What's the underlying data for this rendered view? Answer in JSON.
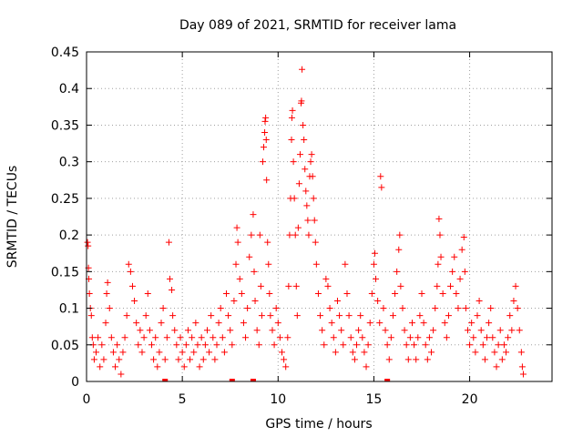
{
  "chart_data": {
    "type": "scatter",
    "title": "Day 089 of 2021, SRMTID for receiver lama",
    "xlabel": "GPS time / hours",
    "ylabel": "SRMTID / TECUs",
    "xlim": [
      0,
      24.3
    ],
    "ylim": [
      0,
      0.45
    ],
    "x_ticks": [
      0,
      5,
      10,
      15,
      20
    ],
    "x_tick_labels": [
      "0",
      "5",
      "10",
      "15",
      "20"
    ],
    "y_ticks": [
      0,
      0.05,
      0.1,
      0.15,
      0.2,
      0.25,
      0.3,
      0.35,
      0.4,
      0.45
    ],
    "y_tick_labels": [
      "0",
      "0.05",
      "0.1",
      "0.15",
      "0.2",
      "0.25",
      "0.3",
      "0.35",
      "0.4",
      "0.45"
    ],
    "grid": true,
    "marker": "plus",
    "color": "#ff0000",
    "series": [
      {
        "name": "SRMTID",
        "points": [
          [
            0.05,
            0.19
          ],
          [
            0.08,
            0.185
          ],
          [
            0.1,
            0.155
          ],
          [
            0.12,
            0.14
          ],
          [
            0.15,
            0.12
          ],
          [
            0.2,
            0.1
          ],
          [
            0.25,
            0.09
          ],
          [
            0.3,
            0.06
          ],
          [
            0.35,
            0.05
          ],
          [
            0.4,
            0.03
          ],
          [
            0.5,
            0.04
          ],
          [
            0.6,
            0.06
          ],
          [
            0.7,
            0.02
          ],
          [
            0.8,
            0.05
          ],
          [
            0.9,
            0.03
          ],
          [
            1.0,
            0.08
          ],
          [
            1.05,
            0.12
          ],
          [
            1.1,
            0.135
          ],
          [
            1.2,
            0.1
          ],
          [
            1.3,
            0.06
          ],
          [
            1.4,
            0.04
          ],
          [
            1.5,
            0.02
          ],
          [
            1.6,
            0.05
          ],
          [
            1.7,
            0.03
          ],
          [
            1.8,
            0.01
          ],
          [
            1.9,
            0.04
          ],
          [
            2.0,
            0.06
          ],
          [
            2.1,
            0.09
          ],
          [
            2.2,
            0.16
          ],
          [
            2.3,
            0.15
          ],
          [
            2.4,
            0.13
          ],
          [
            2.5,
            0.11
          ],
          [
            2.6,
            0.08
          ],
          [
            2.7,
            0.05
          ],
          [
            2.8,
            0.07
          ],
          [
            2.9,
            0.04
          ],
          [
            3.0,
            0.06
          ],
          [
            3.1,
            0.09
          ],
          [
            3.2,
            0.12
          ],
          [
            3.3,
            0.07
          ],
          [
            3.4,
            0.05
          ],
          [
            3.5,
            0.03
          ],
          [
            3.6,
            0.06
          ],
          [
            3.7,
            0.02
          ],
          [
            3.8,
            0.04
          ],
          [
            3.9,
            0.08
          ],
          [
            4.0,
            0.1
          ],
          [
            4.1,
            0.03
          ],
          [
            4.2,
            0.06
          ],
          [
            4.3,
            0.19
          ],
          [
            4.35,
            0.14
          ],
          [
            4.45,
            0.125
          ],
          [
            4.5,
            0.09
          ],
          [
            4.6,
            0.07
          ],
          [
            4.7,
            0.05
          ],
          [
            4.8,
            0.03
          ],
          [
            4.9,
            0.06
          ],
          [
            5.0,
            0.04
          ],
          [
            5.1,
            0.02
          ],
          [
            5.2,
            0.05
          ],
          [
            5.3,
            0.07
          ],
          [
            5.4,
            0.03
          ],
          [
            5.5,
            0.06
          ],
          [
            5.6,
            0.04
          ],
          [
            5.7,
            0.08
          ],
          [
            5.8,
            0.05
          ],
          [
            5.9,
            0.02
          ],
          [
            6.0,
            0.06
          ],
          [
            6.1,
            0.03
          ],
          [
            6.2,
            0.05
          ],
          [
            6.3,
            0.07
          ],
          [
            6.4,
            0.04
          ],
          [
            6.5,
            0.09
          ],
          [
            6.6,
            0.06
          ],
          [
            6.7,
            0.03
          ],
          [
            6.8,
            0.05
          ],
          [
            6.9,
            0.08
          ],
          [
            7.0,
            0.1
          ],
          [
            7.1,
            0.06
          ],
          [
            7.2,
            0.04
          ],
          [
            7.3,
            0.12
          ],
          [
            7.4,
            0.09
          ],
          [
            7.5,
            0.07
          ],
          [
            7.6,
            0.05
          ],
          [
            7.7,
            0.11
          ],
          [
            7.8,
            0.16
          ],
          [
            7.85,
            0.21
          ],
          [
            7.9,
            0.19
          ],
          [
            8.0,
            0.14
          ],
          [
            8.1,
            0.12
          ],
          [
            8.2,
            0.08
          ],
          [
            8.3,
            0.06
          ],
          [
            8.4,
            0.1
          ],
          [
            8.5,
            0.17
          ],
          [
            8.6,
            0.2
          ],
          [
            8.7,
            0.228
          ],
          [
            8.75,
            0.15
          ],
          [
            8.8,
            0.11
          ],
          [
            8.9,
            0.07
          ],
          [
            9.0,
            0.05
          ],
          [
            9.05,
            0.2
          ],
          [
            9.1,
            0.13
          ],
          [
            9.15,
            0.09
          ],
          [
            9.2,
            0.3
          ],
          [
            9.25,
            0.32
          ],
          [
            9.3,
            0.34
          ],
          [
            9.32,
            0.355
          ],
          [
            9.35,
            0.36
          ],
          [
            9.38,
            0.33
          ],
          [
            9.4,
            0.275
          ],
          [
            9.45,
            0.19
          ],
          [
            9.5,
            0.16
          ],
          [
            9.55,
            0.12
          ],
          [
            9.6,
            0.09
          ],
          [
            9.7,
            0.07
          ],
          [
            9.8,
            0.05
          ],
          [
            9.9,
            0.1
          ],
          [
            10.0,
            0.08
          ],
          [
            10.1,
            0.06
          ],
          [
            10.2,
            0.04
          ],
          [
            10.3,
            0.03
          ],
          [
            10.4,
            0.02
          ],
          [
            10.5,
            0.06
          ],
          [
            10.55,
            0.13
          ],
          [
            10.6,
            0.2
          ],
          [
            10.65,
            0.25
          ],
          [
            10.7,
            0.33
          ],
          [
            10.72,
            0.36
          ],
          [
            10.75,
            0.37
          ],
          [
            10.8,
            0.3
          ],
          [
            10.85,
            0.25
          ],
          [
            10.9,
            0.2
          ],
          [
            10.95,
            0.13
          ],
          [
            11.0,
            0.09
          ],
          [
            11.05,
            0.21
          ],
          [
            11.1,
            0.27
          ],
          [
            11.15,
            0.31
          ],
          [
            11.2,
            0.38
          ],
          [
            11.22,
            0.383
          ],
          [
            11.25,
            0.426
          ],
          [
            11.3,
            0.35
          ],
          [
            11.35,
            0.33
          ],
          [
            11.4,
            0.29
          ],
          [
            11.45,
            0.26
          ],
          [
            11.5,
            0.24
          ],
          [
            11.55,
            0.22
          ],
          [
            11.6,
            0.2
          ],
          [
            11.65,
            0.28
          ],
          [
            11.7,
            0.3
          ],
          [
            11.75,
            0.31
          ],
          [
            11.8,
            0.28
          ],
          [
            11.85,
            0.25
          ],
          [
            11.9,
            0.22
          ],
          [
            11.95,
            0.19
          ],
          [
            12.0,
            0.16
          ],
          [
            12.1,
            0.12
          ],
          [
            12.2,
            0.09
          ],
          [
            12.3,
            0.07
          ],
          [
            12.4,
            0.05
          ],
          [
            12.5,
            0.14
          ],
          [
            12.6,
            0.13
          ],
          [
            12.7,
            0.1
          ],
          [
            12.8,
            0.08
          ],
          [
            12.9,
            0.06
          ],
          [
            13.0,
            0.04
          ],
          [
            13.1,
            0.11
          ],
          [
            13.2,
            0.09
          ],
          [
            13.3,
            0.07
          ],
          [
            13.4,
            0.05
          ],
          [
            13.5,
            0.16
          ],
          [
            13.6,
            0.12
          ],
          [
            13.7,
            0.09
          ],
          [
            13.8,
            0.06
          ],
          [
            13.9,
            0.04
          ],
          [
            14.0,
            0.03
          ],
          [
            14.1,
            0.05
          ],
          [
            14.2,
            0.07
          ],
          [
            14.3,
            0.09
          ],
          [
            14.4,
            0.06
          ],
          [
            14.5,
            0.04
          ],
          [
            14.6,
            0.02
          ],
          [
            14.7,
            0.05
          ],
          [
            14.8,
            0.08
          ],
          [
            14.9,
            0.12
          ],
          [
            15.0,
            0.16
          ],
          [
            15.05,
            0.175
          ],
          [
            15.1,
            0.14
          ],
          [
            15.2,
            0.11
          ],
          [
            15.3,
            0.08
          ],
          [
            15.35,
            0.28
          ],
          [
            15.4,
            0.265
          ],
          [
            15.5,
            0.1
          ],
          [
            15.6,
            0.07
          ],
          [
            15.7,
            0.05
          ],
          [
            15.8,
            0.03
          ],
          [
            15.9,
            0.06
          ],
          [
            16.0,
            0.09
          ],
          [
            16.1,
            0.12
          ],
          [
            16.2,
            0.15
          ],
          [
            16.3,
            0.18
          ],
          [
            16.35,
            0.2
          ],
          [
            16.4,
            0.13
          ],
          [
            16.5,
            0.1
          ],
          [
            16.6,
            0.07
          ],
          [
            16.7,
            0.05
          ],
          [
            16.8,
            0.03
          ],
          [
            16.9,
            0.06
          ],
          [
            17.0,
            0.08
          ],
          [
            17.1,
            0.05
          ],
          [
            17.2,
            0.03
          ],
          [
            17.3,
            0.06
          ],
          [
            17.4,
            0.09
          ],
          [
            17.5,
            0.12
          ],
          [
            17.6,
            0.08
          ],
          [
            17.7,
            0.05
          ],
          [
            17.8,
            0.03
          ],
          [
            17.9,
            0.06
          ],
          [
            18.0,
            0.04
          ],
          [
            18.1,
            0.07
          ],
          [
            18.2,
            0.1
          ],
          [
            18.3,
            0.13
          ],
          [
            18.35,
            0.16
          ],
          [
            18.4,
            0.222
          ],
          [
            18.45,
            0.2
          ],
          [
            18.5,
            0.17
          ],
          [
            18.6,
            0.12
          ],
          [
            18.7,
            0.08
          ],
          [
            18.8,
            0.06
          ],
          [
            18.9,
            0.09
          ],
          [
            19.0,
            0.13
          ],
          [
            19.1,
            0.15
          ],
          [
            19.2,
            0.17
          ],
          [
            19.3,
            0.12
          ],
          [
            19.4,
            0.1
          ],
          [
            19.5,
            0.14
          ],
          [
            19.6,
            0.18
          ],
          [
            19.7,
            0.197
          ],
          [
            19.75,
            0.15
          ],
          [
            19.8,
            0.1
          ],
          [
            19.9,
            0.07
          ],
          [
            20.0,
            0.05
          ],
          [
            20.1,
            0.08
          ],
          [
            20.2,
            0.06
          ],
          [
            20.3,
            0.04
          ],
          [
            20.4,
            0.09
          ],
          [
            20.5,
            0.11
          ],
          [
            20.6,
            0.07
          ],
          [
            20.7,
            0.05
          ],
          [
            20.8,
            0.03
          ],
          [
            20.9,
            0.06
          ],
          [
            21.0,
            0.08
          ],
          [
            21.1,
            0.1
          ],
          [
            21.2,
            0.06
          ],
          [
            21.3,
            0.04
          ],
          [
            21.4,
            0.02
          ],
          [
            21.5,
            0.05
          ],
          [
            21.6,
            0.07
          ],
          [
            21.7,
            0.03
          ],
          [
            21.8,
            0.05
          ],
          [
            21.9,
            0.04
          ],
          [
            22.0,
            0.06
          ],
          [
            22.1,
            0.09
          ],
          [
            22.2,
            0.07
          ],
          [
            22.3,
            0.11
          ],
          [
            22.4,
            0.13
          ],
          [
            22.5,
            0.1
          ],
          [
            22.6,
            0.07
          ],
          [
            22.7,
            0.04
          ],
          [
            22.75,
            0.02
          ],
          [
            22.8,
            0.01
          ]
        ]
      }
    ],
    "baseline_markers_x": [
      4.1,
      7.6,
      8.7,
      15.7
    ]
  }
}
